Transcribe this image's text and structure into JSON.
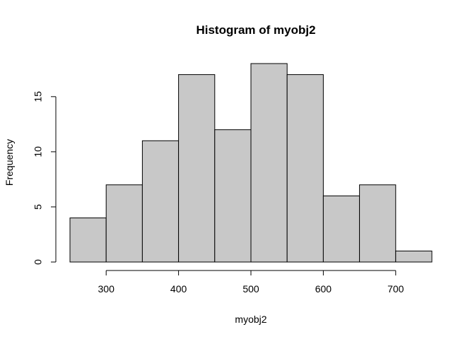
{
  "chart_data": {
    "type": "bar",
    "title": "Histogram of myobj2",
    "xlabel": "myobj2",
    "ylabel": "Frequency",
    "bins": [
      {
        "from": 250,
        "to": 300,
        "count": 4
      },
      {
        "from": 300,
        "to": 350,
        "count": 7
      },
      {
        "from": 350,
        "to": 400,
        "count": 11
      },
      {
        "from": 400,
        "to": 450,
        "count": 17
      },
      {
        "from": 450,
        "to": 500,
        "count": 12
      },
      {
        "from": 500,
        "to": 550,
        "count": 18
      },
      {
        "from": 550,
        "to": 600,
        "count": 17
      },
      {
        "from": 600,
        "to": 650,
        "count": 6
      },
      {
        "from": 650,
        "to": 700,
        "count": 7
      },
      {
        "from": 700,
        "to": 750,
        "count": 1
      }
    ],
    "x_ticks": [
      300,
      400,
      500,
      600,
      700
    ],
    "x_tick_labels": [
      "300",
      "400",
      "500",
      "600",
      "700"
    ],
    "y_ticks": [
      0,
      5,
      10,
      15
    ],
    "y_tick_labels": [
      "0",
      "5",
      "10",
      "15"
    ],
    "xlim": [
      250,
      750
    ],
    "ylim": [
      0,
      18
    ],
    "grid": false,
    "colors": {
      "bar_fill": "#c8c8c8",
      "bar_stroke": "#000000",
      "axis": "#000000"
    }
  }
}
